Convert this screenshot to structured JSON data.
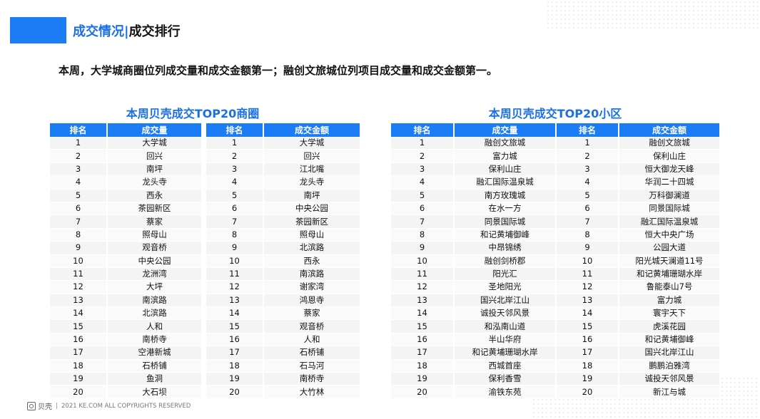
{
  "header": {
    "title_main": "成交情况",
    "separator": "|",
    "title_sub": "成交排行"
  },
  "summary": "本周，大学城商圈位列成交量和成交金额第一；融创文旅城位列项目成交量和成交金额第一。",
  "left_section": {
    "title": "本周贝壳成交TOP20商圈",
    "table_volume": {
      "headers": [
        "排名",
        "成交量"
      ],
      "rows": [
        [
          "1",
          "大学城"
        ],
        [
          "2",
          "回兴"
        ],
        [
          "3",
          "南坪"
        ],
        [
          "4",
          "龙头寺"
        ],
        [
          "5",
          "西永"
        ],
        [
          "6",
          "茶园新区"
        ],
        [
          "7",
          "蔡家"
        ],
        [
          "8",
          "照母山"
        ],
        [
          "9",
          "观音桥"
        ],
        [
          "10",
          "中央公园"
        ],
        [
          "11",
          "龙洲湾"
        ],
        [
          "12",
          "大坪"
        ],
        [
          "13",
          "南滨路"
        ],
        [
          "14",
          "北滨路"
        ],
        [
          "15",
          "人和"
        ],
        [
          "16",
          "南桥寺"
        ],
        [
          "17",
          "空港新城"
        ],
        [
          "18",
          "石桥铺"
        ],
        [
          "19",
          "鱼洞"
        ],
        [
          "20",
          "大石坝"
        ]
      ]
    },
    "table_amount": {
      "headers": [
        "排名",
        "成交金额"
      ],
      "rows": [
        [
          "1",
          "大学城"
        ],
        [
          "2",
          "回兴"
        ],
        [
          "3",
          "江北嘴"
        ],
        [
          "4",
          "龙头寺"
        ],
        [
          "5",
          "南坪"
        ],
        [
          "6",
          "中央公园"
        ],
        [
          "7",
          "茶园新区"
        ],
        [
          "8",
          "照母山"
        ],
        [
          "9",
          "北滨路"
        ],
        [
          "10",
          "西永"
        ],
        [
          "11",
          "南滨路"
        ],
        [
          "12",
          "谢家湾"
        ],
        [
          "13",
          "鸿恩寺"
        ],
        [
          "14",
          "蔡家"
        ],
        [
          "15",
          "观音桥"
        ],
        [
          "16",
          "人和"
        ],
        [
          "17",
          "石桥铺"
        ],
        [
          "18",
          "石马河"
        ],
        [
          "19",
          "南桥寺"
        ],
        [
          "20",
          "大竹林"
        ]
      ]
    }
  },
  "right_section": {
    "title": "本周贝壳成交TOP20小区",
    "table": {
      "headers": [
        "排名",
        "成交量",
        "排名",
        "成交金额"
      ],
      "rows": [
        [
          "1",
          "融创文旅城",
          "1",
          "融创文旅城"
        ],
        [
          "2",
          "富力城",
          "2",
          "保利山庄"
        ],
        [
          "3",
          "保利山庄",
          "3",
          "恒大御龙天峰"
        ],
        [
          "4",
          "融汇国际温泉城",
          "4",
          "华润二十四城"
        ],
        [
          "5",
          "南方玫瑰城",
          "5",
          "万科御澜道"
        ],
        [
          "6",
          "在水一方",
          "6",
          "同景国际城"
        ],
        [
          "7",
          "同景国际城",
          "7",
          "融汇国际温泉城"
        ],
        [
          "8",
          "和记黄埔御峰",
          "8",
          "恒大中央广场"
        ],
        [
          "9",
          "中昂锦绣",
          "9",
          "公园大道"
        ],
        [
          "10",
          "融创剑桥郡",
          "10",
          "阳光城天澜道11号"
        ],
        [
          "11",
          "阳光汇",
          "11",
          "和记黄埔珊瑚水岸"
        ],
        [
          "12",
          "圣地阳光",
          "12",
          "鲁能泰山7号"
        ],
        [
          "13",
          "国兴北岸江山",
          "13",
          "富力城"
        ],
        [
          "14",
          "诚投天邻风景",
          "14",
          "寰宇天下"
        ],
        [
          "15",
          "和泓南山道",
          "15",
          "虎溪花园"
        ],
        [
          "16",
          "半山华府",
          "16",
          "和记黄埔御峰"
        ],
        [
          "17",
          "和记黄埔珊瑚水岸",
          "17",
          "国兴北岸江山"
        ],
        [
          "18",
          "西城首座",
          "18",
          "鹏鹏泊雅湾"
        ],
        [
          "19",
          "保利香雪",
          "19",
          "诚投天邻风景"
        ],
        [
          "20",
          "渝铁东苑",
          "20",
          "新江与城"
        ]
      ]
    }
  },
  "footer": {
    "logo_text": "贝壳",
    "copyright": "2021 KE.COM ALL COPYRIGHTS  RESERVED"
  }
}
